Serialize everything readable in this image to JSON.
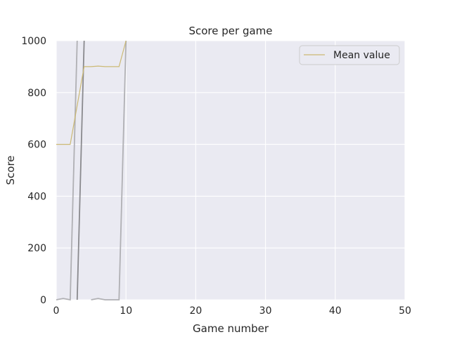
{
  "chart_data": {
    "type": "line",
    "title": "Score per game",
    "xlabel": "Game number",
    "ylabel": "Score",
    "xlim": [
      0,
      50
    ],
    "ylim": [
      0,
      1000
    ],
    "xticks": [
      0,
      10,
      20,
      30,
      40,
      50
    ],
    "yticks": [
      0,
      200,
      400,
      600,
      800,
      1000
    ],
    "grid": true,
    "legend_position": "top-right",
    "colors": {
      "background": "#eaeaf2",
      "grid": "#ffffff",
      "mean": "#ccb974",
      "light_series": "#b0b0b4",
      "dark_series": "#8a8a8e"
    },
    "series": [
      {
        "name": "Mean value",
        "role": "mean",
        "x": [
          0,
          1,
          2,
          3,
          4,
          5,
          6,
          7,
          8,
          9,
          10
        ],
        "values": [
          600,
          600,
          600,
          750,
          900,
          900,
          902,
          900,
          900,
          900,
          1000
        ]
      },
      {
        "name": "",
        "role": "light",
        "x": [
          0,
          1,
          2,
          3
        ],
        "values": [
          0,
          5,
          0,
          1000
        ]
      },
      {
        "name": "",
        "role": "dark",
        "x": [
          3,
          4
        ],
        "values": [
          0,
          1000
        ]
      },
      {
        "name": "",
        "role": "light",
        "x": [
          5,
          6,
          7,
          8,
          9,
          10
        ],
        "values": [
          0,
          5,
          0,
          0,
          0,
          1000
        ]
      }
    ]
  }
}
